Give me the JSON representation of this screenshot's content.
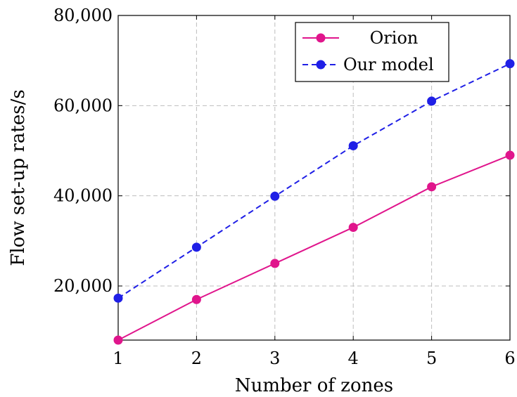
{
  "chart_data": {
    "type": "line",
    "title": "",
    "xlabel": "Number of zones",
    "ylabel": "Flow set-up rates/s",
    "x": [
      1,
      2,
      3,
      4,
      5,
      6
    ],
    "xlim": [
      1,
      6
    ],
    "ylim": [
      8000,
      80000
    ],
    "x_ticks": [
      "1",
      "2",
      "3",
      "4",
      "5",
      "6"
    ],
    "y_ticks": [
      {
        "value": 20000,
        "label": "20,000"
      },
      {
        "value": 40000,
        "label": "40,000"
      },
      {
        "value": 60000,
        "label": "60,000"
      },
      {
        "value": 80000,
        "label": "80,000"
      }
    ],
    "grid": true,
    "legend_position": "top-right",
    "series": [
      {
        "name": "Orion",
        "values": [
          8000,
          17000,
          25000,
          33000,
          42000,
          49000
        ],
        "color": "#e0158c",
        "line_style": "solid",
        "marker": "circle"
      },
      {
        "name": "Our model",
        "values": [
          17300,
          28600,
          39900,
          51100,
          61000,
          69300
        ],
        "color": "#1f1fe6",
        "line_style": "dashed",
        "marker": "circle"
      }
    ]
  }
}
